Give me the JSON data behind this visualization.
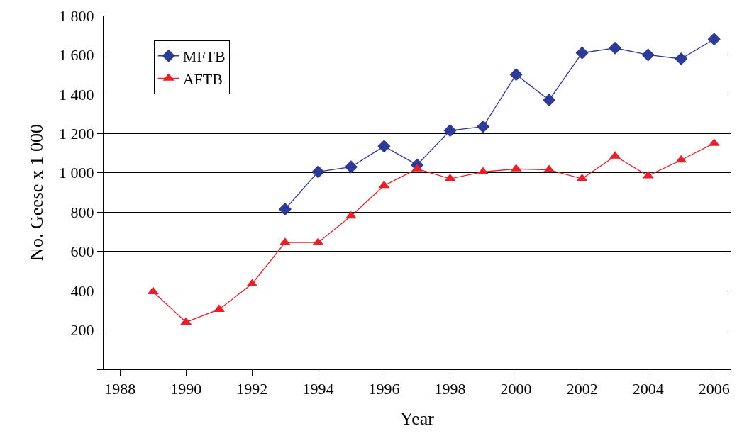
{
  "chart_data": {
    "type": "line",
    "xlabel": "Year",
    "ylabel": "No. Geese x 1 000",
    "x": [
      1989,
      1990,
      1991,
      1992,
      1993,
      1994,
      1995,
      1996,
      1997,
      1998,
      1999,
      2000,
      2001,
      2002,
      2003,
      2004,
      2005,
      2006
    ],
    "series": [
      {
        "name": "MFTB",
        "color": "#2e3a97",
        "marker": "diamond",
        "values": [
          null,
          null,
          null,
          null,
          815,
          1005,
          1030,
          1135,
          1040,
          1215,
          1235,
          1500,
          1370,
          1610,
          1635,
          1600,
          1580,
          1680
        ]
      },
      {
        "name": "AFTB",
        "color": "#e8202a",
        "marker": "triangle",
        "values": [
          395,
          240,
          305,
          435,
          645,
          645,
          780,
          935,
          1020,
          970,
          1005,
          1020,
          1015,
          970,
          1085,
          985,
          1065,
          1150
        ]
      }
    ],
    "xlim": [
      1987.5,
      2006.5
    ],
    "xticks": [
      1988,
      1990,
      1992,
      1994,
      1996,
      1998,
      2000,
      2002,
      2004,
      2006
    ],
    "ylim": [
      0,
      1800
    ],
    "yticks": [
      {
        "value": 0,
        "label": null
      },
      {
        "value": 200,
        "label": "200"
      },
      {
        "value": 400,
        "label": "400"
      },
      {
        "value": 600,
        "label": "600"
      },
      {
        "value": 800,
        "label": "800"
      },
      {
        "value": 1000,
        "label": "1 000"
      },
      {
        "value": 1200,
        "label": "1 200"
      },
      {
        "value": 1400,
        "label": "1 400"
      },
      {
        "value": 1600,
        "label": "1 600"
      },
      {
        "value": 1800,
        "label": "1 800"
      }
    ],
    "grid": "y",
    "legend": "top left",
    "line_style": "solid"
  }
}
